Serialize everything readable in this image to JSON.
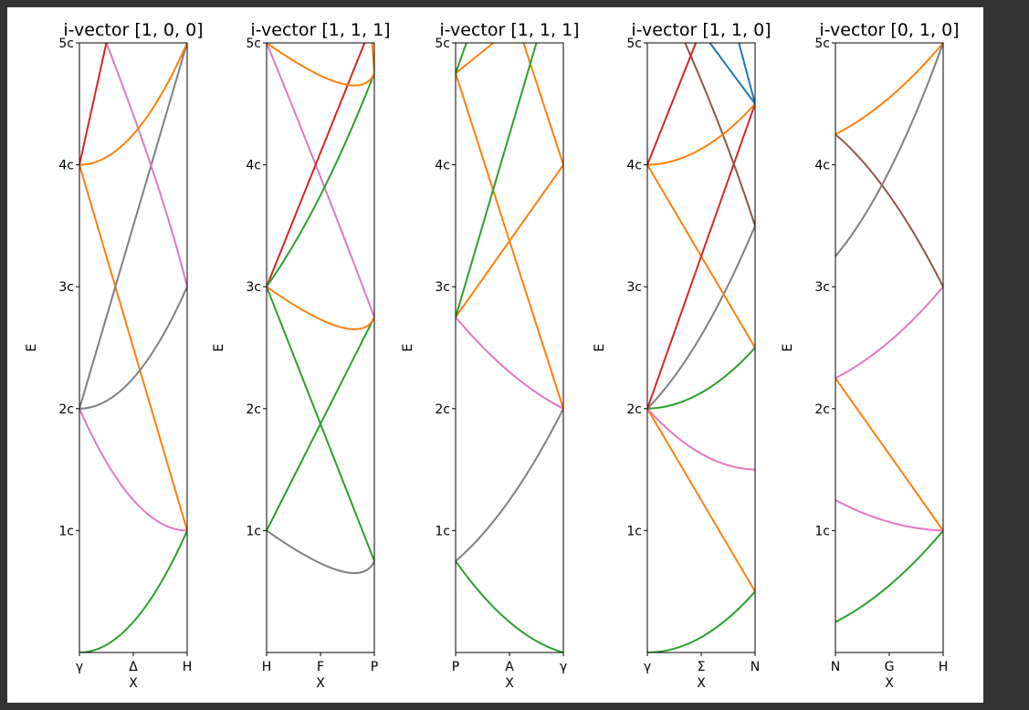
{
  "colors": {
    "blue": "#1f77b4",
    "orange": "#ff7f0e",
    "green": "#2ca02c",
    "red": "#d62728",
    "brown": "#8c564b",
    "pink": "#e377c2",
    "gray": "#7f7f7f"
  },
  "chart_data": [
    {
      "type": "line",
      "title": "i-vector [1, 0, 0]",
      "xlabel": "X",
      "ylabel": "E",
      "xticks": [
        "γ",
        "Δ",
        "H"
      ],
      "yticks": [
        "1c",
        "2c",
        "3c",
        "4c",
        "5c"
      ],
      "xlim": [
        0,
        1
      ],
      "ylim": [
        0,
        5
      ],
      "series": [
        {
          "color": "green",
          "x": [
            0,
            0.5,
            1
          ],
          "y": [
            0,
            0.25,
            1
          ]
        },
        {
          "color": "pink",
          "x": [
            0,
            0.5,
            1
          ],
          "y": [
            2,
            1.25,
            1
          ]
        },
        {
          "color": "orange",
          "x": [
            0,
            1
          ],
          "y": [
            4,
            1
          ]
        },
        {
          "color": "gray",
          "x": [
            0,
            0.5,
            1
          ],
          "y": [
            2,
            2.25,
            3
          ]
        },
        {
          "color": "gray",
          "x": [
            0,
            1
          ],
          "y": [
            2,
            5
          ]
        },
        {
          "color": "pink",
          "x": [
            0.25,
            0.7,
            1
          ],
          "y": [
            5,
            3.9,
            3
          ]
        },
        {
          "color": "red",
          "x": [
            0,
            0.25
          ],
          "y": [
            4,
            5
          ]
        },
        {
          "color": "orange",
          "x": [
            0,
            0.5,
            1
          ],
          "y": [
            4,
            4.25,
            5
          ]
        }
      ]
    },
    {
      "type": "line",
      "title": "i-vector [1, 1, 1]",
      "xlabel": "X",
      "ylabel": "E",
      "xticks": [
        "H",
        "F",
        "P"
      ],
      "yticks": [
        "1c",
        "2c",
        "3c",
        "4c",
        "5c"
      ],
      "xlim": [
        0,
        1
      ],
      "ylim": [
        0,
        5
      ],
      "series": [
        {
          "color": "gray",
          "x": [
            0,
            0.68,
            1
          ],
          "y": [
            1,
            0.67,
            0.75
          ]
        },
        {
          "color": "green",
          "x": [
            0,
            1
          ],
          "y": [
            1,
            2.75
          ]
        },
        {
          "color": "green",
          "x": [
            0,
            1
          ],
          "y": [
            3,
            0.75
          ]
        },
        {
          "color": "orange",
          "x": [
            0,
            0.68,
            1
          ],
          "y": [
            3,
            2.67,
            2.75
          ]
        },
        {
          "color": "pink",
          "x": [
            0,
            0.5,
            1
          ],
          "y": [
            5,
            3.9,
            2.75
          ]
        },
        {
          "color": "red",
          "x": [
            0,
            1
          ],
          "y": [
            3,
            5.2
          ]
        },
        {
          "color": "green",
          "x": [
            0,
            0.5,
            1
          ],
          "y": [
            3,
            3.75,
            4.75
          ]
        },
        {
          "color": "orange",
          "x": [
            0,
            0.68,
            1
          ],
          "y": [
            5,
            4.67,
            4.75
          ]
        },
        {
          "color": "orange",
          "x": [
            0.98,
            1
          ],
          "y": [
            5,
            4.75
          ]
        }
      ]
    },
    {
      "type": "line",
      "title": "i-vector [1, 1, 1]",
      "xlabel": "X",
      "ylabel": "E",
      "xticks": [
        "P",
        "A",
        "γ"
      ],
      "yticks": [
        "1c",
        "2c",
        "3c",
        "4c",
        "5c"
      ],
      "xlim": [
        0,
        1
      ],
      "ylim": [
        0,
        5
      ],
      "series": [
        {
          "color": "green",
          "x": [
            0,
            0.5,
            1
          ],
          "y": [
            0.75,
            0.25,
            0
          ]
        },
        {
          "color": "gray",
          "x": [
            0,
            0.5,
            1
          ],
          "y": [
            0.75,
            1.25,
            2
          ]
        },
        {
          "color": "pink",
          "x": [
            0,
            0.5,
            1
          ],
          "y": [
            2.75,
            2.3,
            2
          ]
        },
        {
          "color": "orange",
          "x": [
            0,
            1
          ],
          "y": [
            4.75,
            2
          ]
        },
        {
          "color": "orange",
          "x": [
            0,
            1
          ],
          "y": [
            2.75,
            4
          ]
        },
        {
          "color": "orange",
          "x": [
            0.63,
            1
          ],
          "y": [
            5,
            4
          ]
        },
        {
          "color": "green",
          "x": [
            0,
            0.75
          ],
          "y": [
            2.75,
            5
          ]
        },
        {
          "color": "orange",
          "x": [
            0,
            0.35
          ],
          "y": [
            4.75,
            5
          ]
        },
        {
          "color": "green",
          "x": [
            0,
            0.1
          ],
          "y": [
            4.75,
            5
          ]
        }
      ]
    },
    {
      "type": "line",
      "title": "i-vector [1, 1, 0]",
      "xlabel": "X",
      "ylabel": "E",
      "xticks": [
        "γ",
        "Σ",
        "N"
      ],
      "yticks": [
        "1c",
        "2c",
        "3c",
        "4c",
        "5c"
      ],
      "xlim": [
        0,
        1
      ],
      "ylim": [
        0,
        5
      ],
      "series": [
        {
          "color": "green",
          "x": [
            0,
            0.5,
            1
          ],
          "y": [
            0,
            0.125,
            0.5
          ]
        },
        {
          "color": "orange",
          "x": [
            0,
            0.5,
            1
          ],
          "y": [
            2,
            1.25,
            0.5
          ]
        },
        {
          "color": "pink",
          "x": [
            0,
            0.5,
            1
          ],
          "y": [
            2,
            1.63,
            1.5
          ]
        },
        {
          "color": "green",
          "x": [
            0,
            0.5,
            1
          ],
          "y": [
            2,
            2.13,
            2.5
          ]
        },
        {
          "color": "gray",
          "x": [
            0,
            0.5,
            1
          ],
          "y": [
            2,
            2.6,
            3.5
          ]
        },
        {
          "color": "orange",
          "x": [
            0,
            1
          ],
          "y": [
            4,
            2.5
          ]
        },
        {
          "color": "red",
          "x": [
            0,
            1
          ],
          "y": [
            2,
            4.5
          ]
        },
        {
          "color": "brown",
          "x": [
            0.35,
            0.7,
            1
          ],
          "y": [
            5,
            4.25,
            3.5
          ]
        },
        {
          "color": "orange",
          "x": [
            0,
            0.5,
            1
          ],
          "y": [
            4,
            4.13,
            4.5
          ]
        },
        {
          "color": "red",
          "x": [
            0,
            0.45
          ],
          "y": [
            4,
            5
          ]
        },
        {
          "color": "blue",
          "x": [
            0.58,
            1
          ],
          "y": [
            5,
            4.5
          ]
        },
        {
          "color": "blue",
          "x": [
            0.85,
            1
          ],
          "y": [
            5,
            4.5
          ]
        }
      ]
    },
    {
      "type": "line",
      "title": "i-vector [0, 1, 0]",
      "xlabel": "X",
      "ylabel": "E",
      "xticks": [
        "N",
        "G",
        "H"
      ],
      "yticks": [
        "1c",
        "2c",
        "3c",
        "4c",
        "5c"
      ],
      "xlim": [
        0,
        1
      ],
      "ylim": [
        0,
        5
      ],
      "series": [
        {
          "color": "green",
          "x": [
            0,
            0.5,
            1
          ],
          "y": [
            0.25,
            0.55,
            1
          ]
        },
        {
          "color": "pink",
          "x": [
            0,
            0.5,
            1
          ],
          "y": [
            1.25,
            1.07,
            1
          ]
        },
        {
          "color": "orange",
          "x": [
            0,
            1
          ],
          "y": [
            2.25,
            1
          ]
        },
        {
          "color": "pink",
          "x": [
            0,
            0.5,
            1
          ],
          "y": [
            2.25,
            2.55,
            3
          ]
        },
        {
          "color": "brown",
          "x": [
            0,
            0.5,
            1
          ],
          "y": [
            4.25,
            3.75,
            3
          ]
        },
        {
          "color": "gray",
          "x": [
            0,
            0.5,
            1
          ],
          "y": [
            3.25,
            3.95,
            5
          ]
        },
        {
          "color": "orange",
          "x": [
            0,
            0.5,
            1
          ],
          "y": [
            4.25,
            4.55,
            5
          ]
        }
      ]
    }
  ]
}
